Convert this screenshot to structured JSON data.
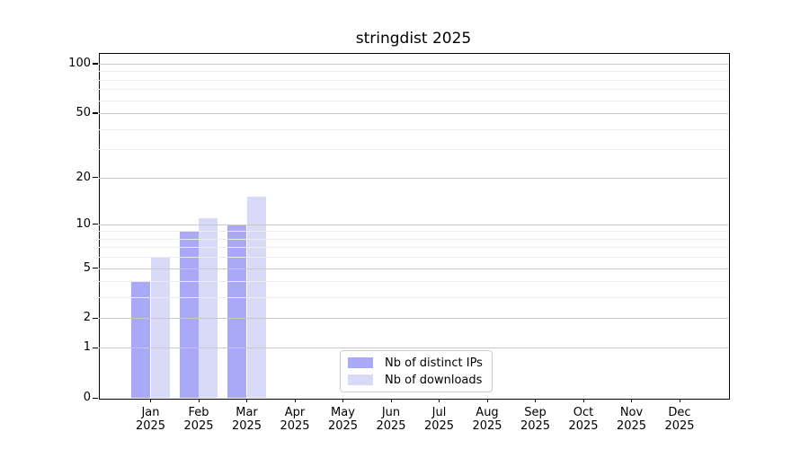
{
  "title": "stringdist 2025",
  "chart_data": {
    "type": "bar",
    "title": "stringdist 2025",
    "x_months": [
      "Jan",
      "Feb",
      "Mar",
      "Apr",
      "May",
      "Jun",
      "Jul",
      "Aug",
      "Sep",
      "Oct",
      "Nov",
      "Dec"
    ],
    "x_year": "2025",
    "categories": [
      "Jan 2025",
      "Feb 2025",
      "Mar 2025",
      "Apr 2025",
      "May 2025",
      "Jun 2025",
      "Jul 2025",
      "Aug 2025",
      "Sep 2025",
      "Oct 2025",
      "Nov 2025",
      "Dec 2025"
    ],
    "series": [
      {
        "name": "Nb of distinct IPs",
        "values": [
          4,
          9,
          10,
          0,
          0,
          0,
          0,
          0,
          0,
          0,
          0,
          0
        ],
        "color": "#a9a9f8"
      },
      {
        "name": "Nb of downloads",
        "values": [
          6,
          11,
          15,
          0,
          0,
          0,
          0,
          0,
          0,
          0,
          0,
          0
        ],
        "color": "#d9d9f8"
      }
    ],
    "xlabel": "",
    "ylabel": "",
    "yscale": "log1p",
    "ylim": [
      0,
      116
    ],
    "yticks": [
      0,
      1,
      2,
      5,
      10,
      20,
      50,
      100
    ],
    "yticks_minor": [
      3,
      4,
      6,
      7,
      8,
      9,
      30,
      40,
      60,
      70,
      80,
      90
    ],
    "grid": "horizontal",
    "legend_entries": [
      "Nb of distinct IPs",
      "Nb of downloads"
    ],
    "legend_position": "lower center inside"
  },
  "colors": {
    "ips_bar": "#a9a9f8",
    "downloads_bar": "#d9d9f8",
    "grid_major": "#c9c9c9",
    "grid_minor": "#ececec",
    "spine": "#000000",
    "legend_border": "#cccccc",
    "background": "#ffffff"
  }
}
